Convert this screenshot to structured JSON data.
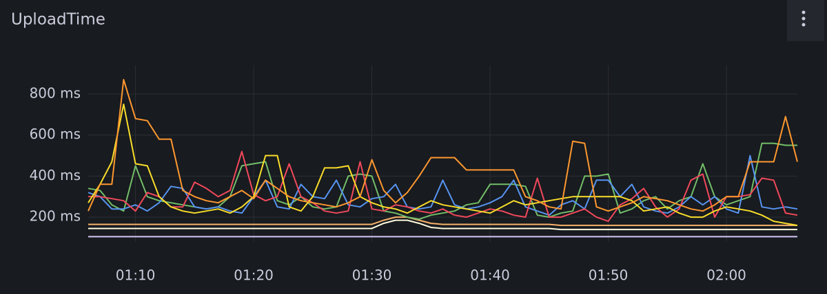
{
  "chart_data": {
    "type": "line",
    "title": "UploadTime",
    "x": [
      "01:06",
      "01:07",
      "01:08",
      "01:09",
      "01:10",
      "01:11",
      "01:12",
      "01:13",
      "01:14",
      "01:15",
      "01:16",
      "01:17",
      "01:18",
      "01:19",
      "01:20",
      "01:21",
      "01:22",
      "01:23",
      "01:24",
      "01:25",
      "01:26",
      "01:27",
      "01:28",
      "01:29",
      "01:30",
      "01:31",
      "01:32",
      "01:33",
      "01:34",
      "01:35",
      "01:36",
      "01:37",
      "01:38",
      "01:39",
      "01:40",
      "01:41",
      "01:42",
      "01:43",
      "01:44",
      "01:45",
      "01:46",
      "01:47",
      "01:48",
      "01:49",
      "01:50",
      "01:51",
      "01:52",
      "01:53",
      "01:54",
      "01:55",
      "01:56",
      "01:57",
      "01:58",
      "01:59",
      "02:00",
      "02:01",
      "02:02",
      "02:03",
      "02:04",
      "02:05",
      "02:06"
    ],
    "xticks": [
      "01:10",
      "01:20",
      "01:30",
      "01:40",
      "01:50",
      "02:00"
    ],
    "ylim": [
      80,
      940
    ],
    "yticks": [
      {
        "value": 200,
        "label": "200 ms"
      },
      {
        "value": 400,
        "label": "400 ms"
      },
      {
        "value": 600,
        "label": "600 ms"
      },
      {
        "value": 800,
        "label": "800 ms"
      }
    ],
    "grid": true,
    "series": [
      {
        "color": "#fffbe0",
        "values": [
          145,
          145,
          145,
          145,
          145,
          145,
          145,
          145,
          145,
          145,
          145,
          145,
          145,
          145,
          145,
          145,
          145,
          145,
          145,
          145,
          145,
          145,
          145,
          145,
          145,
          170,
          185,
          185,
          170,
          150,
          145,
          145,
          145,
          145,
          145,
          145,
          145,
          145,
          145,
          145,
          140,
          140,
          140,
          140,
          140,
          140,
          140,
          140,
          140,
          140,
          140,
          140,
          140,
          140,
          140,
          140,
          140,
          140,
          140,
          140,
          140
        ]
      },
      {
        "color": "#f9b36b",
        "values": [
          165,
          165,
          165,
          165,
          165,
          165,
          165,
          165,
          165,
          165,
          165,
          165,
          165,
          165,
          165,
          165,
          165,
          165,
          165,
          165,
          165,
          165,
          165,
          165,
          165,
          185,
          200,
          200,
          185,
          170,
          165,
          165,
          165,
          165,
          165,
          165,
          165,
          165,
          165,
          165,
          160,
          160,
          160,
          160,
          160,
          160,
          160,
          160,
          160,
          160,
          160,
          160,
          160,
          160,
          160,
          160,
          160,
          160,
          160,
          160,
          160
        ]
      },
      {
        "color": "#d8c8f8",
        "values": [
          105,
          105,
          105,
          105,
          105,
          105,
          105,
          105,
          105,
          105,
          105,
          105,
          105,
          105,
          105,
          105,
          105,
          105,
          105,
          105,
          105,
          105,
          105,
          105,
          105,
          105,
          105,
          105,
          105,
          105,
          105,
          105,
          105,
          105,
          105,
          105,
          105,
          105,
          105,
          105,
          105,
          105,
          105,
          105,
          105,
          105,
          105,
          105,
          105,
          105,
          105,
          105,
          105,
          105,
          105,
          105,
          105,
          105,
          105,
          105,
          105
        ]
      },
      {
        "color": "#73bf69",
        "values": [
          340,
          330,
          260,
          230,
          450,
          300,
          280,
          270,
          260,
          250,
          240,
          250,
          300,
          450,
          460,
          470,
          280,
          260,
          300,
          250,
          240,
          250,
          400,
          410,
          400,
          230,
          220,
          200,
          190,
          210,
          220,
          230,
          260,
          270,
          360,
          360,
          360,
          350,
          210,
          200,
          220,
          230,
          400,
          400,
          410,
          220,
          240,
          280,
          300,
          240,
          280,
          300,
          460,
          300,
          260,
          280,
          300,
          560,
          560,
          550,
          550
        ]
      },
      {
        "color": "#5794f2",
        "values": [
          320,
          300,
          240,
          240,
          260,
          230,
          270,
          350,
          340,
          250,
          240,
          250,
          230,
          220,
          300,
          380,
          250,
          240,
          360,
          300,
          290,
          380,
          260,
          250,
          290,
          300,
          360,
          250,
          240,
          250,
          380,
          260,
          240,
          250,
          270,
          300,
          380,
          250,
          230,
          210,
          260,
          280,
          240,
          380,
          380,
          300,
          360,
          250,
          230,
          220,
          250,
          300,
          260,
          300,
          240,
          220,
          500,
          250,
          240,
          250,
          240
        ]
      },
      {
        "color": "#f2495c",
        "values": [
          300,
          300,
          290,
          280,
          230,
          320,
          300,
          250,
          250,
          370,
          340,
          300,
          330,
          520,
          310,
          280,
          300,
          460,
          300,
          270,
          230,
          220,
          230,
          470,
          240,
          230,
          260,
          250,
          230,
          220,
          240,
          210,
          200,
          220,
          240,
          230,
          210,
          200,
          390,
          200,
          200,
          220,
          240,
          200,
          180,
          260,
          290,
          340,
          250,
          200,
          240,
          380,
          410,
          200,
          300,
          300,
          310,
          390,
          380,
          220,
          210
        ]
      },
      {
        "color": "#fade2a",
        "values": [
          270,
          360,
          470,
          750,
          460,
          450,
          300,
          250,
          230,
          220,
          230,
          240,
          220,
          250,
          300,
          500,
          500,
          250,
          230,
          300,
          440,
          440,
          450,
          300,
          270,
          250,
          240,
          220,
          250,
          280,
          260,
          250,
          240,
          230,
          220,
          250,
          280,
          260,
          270,
          280,
          290,
          300,
          300,
          300,
          300,
          300,
          280,
          230,
          240,
          250,
          220,
          200,
          200,
          230,
          250,
          240,
          230,
          210,
          180,
          170,
          160
        ]
      },
      {
        "color": "#ff9830",
        "values": [
          230,
          360,
          360,
          870,
          680,
          670,
          580,
          580,
          330,
          300,
          280,
          270,
          300,
          330,
          290,
          380,
          340,
          300,
          280,
          270,
          260,
          250,
          270,
          300,
          480,
          330,
          270,
          320,
          400,
          490,
          490,
          490,
          430,
          430,
          430,
          430,
          430,
          300,
          280,
          250,
          240,
          570,
          560,
          250,
          230,
          250,
          270,
          300,
          290,
          280,
          260,
          240,
          230,
          260,
          300,
          300,
          470,
          470,
          470,
          690,
          470
        ]
      }
    ]
  }
}
